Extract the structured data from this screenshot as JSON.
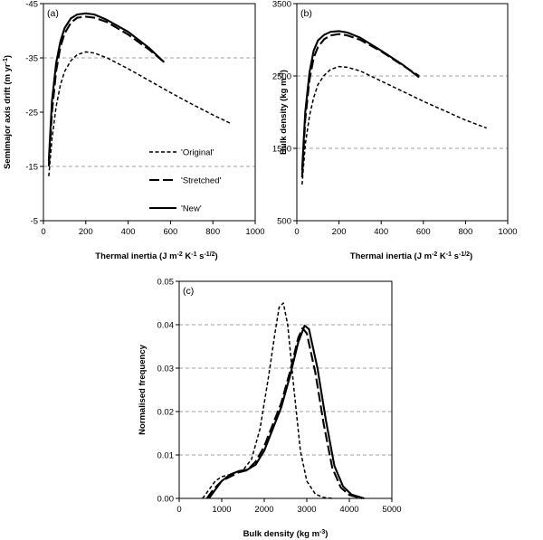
{
  "chart_data": [
    {
      "id": "a",
      "type": "line",
      "panel_label": "(a)",
      "xlabel": "Thermal inertia (J m⁻² K⁻¹ s⁻¹ᐟ²)",
      "ylabel": "Semimajor axis drift (m yr⁻¹)",
      "xlim": [
        0,
        1000
      ],
      "ylim": [
        -5,
        -45
      ],
      "y_reversed": true,
      "xticks": [
        "0",
        "200",
        "400",
        "600",
        "800",
        "1000"
      ],
      "yticks": [
        "-5",
        "-15",
        "-25",
        "-35",
        "-45"
      ],
      "grid_y": [
        -15,
        -35
      ],
      "legend": [
        "'Original'",
        "'Stretched'",
        "'New'"
      ],
      "series": [
        {
          "name": "'Original'",
          "style": "short-dash",
          "x": [
            25,
            40,
            60,
            80,
            100,
            130,
            160,
            200,
            240,
            300,
            400,
            500,
            600,
            700,
            800,
            880
          ],
          "y": [
            -13.2,
            -20,
            -26,
            -30,
            -32.5,
            -34.5,
            -35.6,
            -36.1,
            -35.9,
            -35,
            -33,
            -30.8,
            -28.6,
            -26.5,
            -24.5,
            -23
          ]
        },
        {
          "name": "'Stretched'",
          "style": "long-dash",
          "x": [
            25,
            40,
            60,
            80,
            100,
            130,
            160,
            200,
            240,
            300,
            400,
            500,
            570
          ],
          "y": [
            -15,
            -25,
            -32.5,
            -37,
            -39.5,
            -41.5,
            -42.4,
            -42.6,
            -42.4,
            -41.6,
            -39.3,
            -36.5,
            -34.2
          ]
        },
        {
          "name": "'New'",
          "style": "solid",
          "x": [
            25,
            40,
            60,
            80,
            100,
            130,
            160,
            200,
            240,
            300,
            400,
            500,
            570
          ],
          "y": [
            -16,
            -27,
            -34,
            -38,
            -40.5,
            -42.3,
            -43,
            -43.2,
            -43,
            -42,
            -39.8,
            -36.8,
            -34.2
          ]
        }
      ]
    },
    {
      "id": "b",
      "type": "line",
      "panel_label": "(b)",
      "xlabel": "Thermal inertia (J m⁻² K⁻¹ s⁻¹ᐟ²)",
      "ylabel": "Bulk density (kg m⁻³)",
      "xlim": [
        0,
        1000
      ],
      "ylim": [
        500,
        3500
      ],
      "xticks": [
        "0",
        "200",
        "400",
        "600",
        "800",
        "1000"
      ],
      "yticks": [
        "500",
        "1500",
        "2500",
        "3500"
      ],
      "grid_y": [
        1500,
        2500
      ],
      "series": [
        {
          "name": "'Original'",
          "style": "short-dash",
          "x": [
            25,
            40,
            60,
            80,
            100,
            130,
            160,
            200,
            240,
            300,
            400,
            500,
            600,
            700,
            800,
            900
          ],
          "y": [
            1000,
            1550,
            1950,
            2200,
            2380,
            2510,
            2590,
            2630,
            2620,
            2570,
            2430,
            2290,
            2150,
            2020,
            1890,
            1780
          ]
        },
        {
          "name": "'Stretched'",
          "style": "long-dash",
          "x": [
            25,
            40,
            60,
            80,
            100,
            130,
            160,
            200,
            240,
            300,
            400,
            500,
            580
          ],
          "y": [
            1100,
            1900,
            2450,
            2750,
            2900,
            3010,
            3060,
            3080,
            3060,
            3000,
            2840,
            2650,
            2500
          ]
        },
        {
          "name": "'New'",
          "style": "solid",
          "x": [
            25,
            40,
            60,
            80,
            100,
            130,
            160,
            200,
            240,
            300,
            400,
            500,
            580
          ],
          "y": [
            1200,
            2000,
            2550,
            2850,
            2990,
            3070,
            3110,
            3120,
            3100,
            3030,
            2850,
            2660,
            2480
          ]
        }
      ]
    },
    {
      "id": "c",
      "type": "line",
      "panel_label": "(c)",
      "xlabel": "Bulk density (kg m⁻³)",
      "ylabel": "Normalised frequency",
      "xlim": [
        0,
        5000
      ],
      "ylim": [
        0,
        0.05
      ],
      "xticks": [
        "0",
        "1000",
        "2000",
        "3000",
        "4000",
        "5000"
      ],
      "yticks": [
        "0.00",
        "0.01",
        "0.02",
        "0.03",
        "0.04",
        "0.05"
      ],
      "grid_y": [
        0.01,
        0.02,
        0.03,
        0.04
      ],
      "series": [
        {
          "name": "'Original'",
          "style": "short-dash",
          "x": [
            550,
            700,
            850,
            1000,
            1200,
            1500,
            1700,
            1900,
            2100,
            2250,
            2350,
            2450,
            2550,
            2700,
            2850,
            3000,
            3200,
            3400,
            3600
          ],
          "y": [
            0,
            0.002,
            0.004,
            0.005,
            0.0055,
            0.0065,
            0.009,
            0.016,
            0.028,
            0.038,
            0.044,
            0.045,
            0.04,
            0.025,
            0.011,
            0.004,
            0.001,
            0.0002,
            0
          ]
        },
        {
          "name": "'Stretched'",
          "style": "long-dash",
          "x": [
            650,
            800,
            1000,
            1200,
            1400,
            1600,
            1800,
            2000,
            2200,
            2400,
            2600,
            2800,
            2900,
            3000,
            3200,
            3400,
            3600,
            3800,
            4000,
            4300
          ],
          "y": [
            0,
            0.002,
            0.004,
            0.005,
            0.006,
            0.0065,
            0.0085,
            0.012,
            0.017,
            0.022,
            0.029,
            0.037,
            0.0392,
            0.038,
            0.029,
            0.017,
            0.007,
            0.0025,
            0.0008,
            0
          ]
        },
        {
          "name": "'New'",
          "style": "solid",
          "x": [
            700,
            850,
            1000,
            1200,
            1400,
            1600,
            1800,
            2000,
            2200,
            2400,
            2600,
            2800,
            2950,
            3050,
            3250,
            3450,
            3650,
            3850,
            4050,
            4350
          ],
          "y": [
            0,
            0.002,
            0.004,
            0.0055,
            0.0063,
            0.0066,
            0.0078,
            0.011,
            0.016,
            0.021,
            0.028,
            0.036,
            0.0398,
            0.039,
            0.03,
            0.018,
            0.0075,
            0.0028,
            0.0009,
            0
          ]
        }
      ]
    }
  ]
}
